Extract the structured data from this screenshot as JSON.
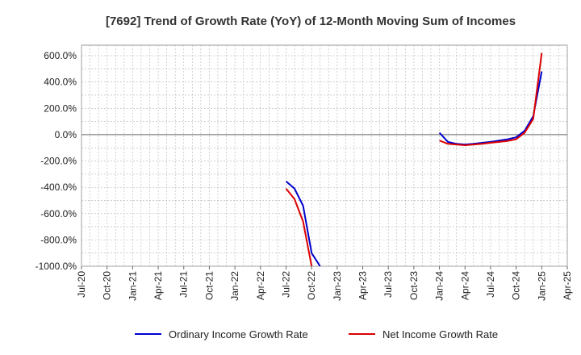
{
  "chart_data": {
    "type": "line",
    "title": "[7692]  Trend of Growth Rate (YoY) of 12-Month Moving Sum of Incomes",
    "xlabel": "",
    "ylabel": "",
    "grid": true,
    "legend_position": "bottom",
    "ylim": [
      -1000,
      680
    ],
    "y_ticks": [
      "600.0%",
      "400.0%",
      "200.0%",
      "0.0%",
      "-200.0%",
      "-400.0%",
      "-600.0%",
      "-800.0%",
      "-1000.0%"
    ],
    "y_tick_values": [
      600,
      400,
      200,
      0,
      -200,
      -400,
      -600,
      -800,
      -1000
    ],
    "x_ticks": [
      "Jul-20",
      "Oct-20",
      "Jan-21",
      "Apr-21",
      "Jul-21",
      "Oct-21",
      "Jan-22",
      "Apr-22",
      "Jul-22",
      "Oct-22",
      "Jan-23",
      "Apr-23",
      "Jul-23",
      "Oct-23",
      "Jan-24",
      "Apr-24",
      "Jul-24",
      "Oct-24",
      "Jan-25",
      "Apr-25"
    ],
    "series": [
      {
        "name": "Ordinary Income Growth Rate",
        "color": "#0000cc",
        "segments": [
          [
            [
              "Jul-22",
              -355
            ],
            [
              "Aug-22",
              -410
            ],
            [
              "Sep-22",
              -540
            ],
            [
              "Oct-22",
              -900
            ],
            [
              "Nov-22",
              -1000
            ]
          ],
          [
            [
              "Jan-24",
              15
            ],
            [
              "Feb-24",
              -55
            ],
            [
              "Mar-24",
              -70
            ],
            [
              "Apr-24",
              -75
            ],
            [
              "May-24",
              -70
            ],
            [
              "Jun-24",
              -62
            ],
            [
              "Jul-24",
              -55
            ],
            [
              "Aug-24",
              -45
            ],
            [
              "Sep-24",
              -35
            ],
            [
              "Oct-24",
              -20
            ],
            [
              "Nov-24",
              30
            ],
            [
              "Dec-24",
              140
            ],
            [
              "Jan-25",
              480
            ]
          ]
        ]
      },
      {
        "name": "Net Income Growth Rate",
        "color": "#dd0000",
        "segments": [
          [
            [
              "Jul-22",
              -410
            ],
            [
              "Aug-22",
              -490
            ],
            [
              "Sep-22",
              -660
            ],
            [
              "Oct-22",
              -1000
            ]
          ],
          [
            [
              "Jan-24",
              -45
            ],
            [
              "Feb-24",
              -70
            ],
            [
              "Mar-24",
              -75
            ],
            [
              "Apr-24",
              -80
            ],
            [
              "May-24",
              -75
            ],
            [
              "Jun-24",
              -70
            ],
            [
              "Jul-24",
              -62
            ],
            [
              "Aug-24",
              -55
            ],
            [
              "Sep-24",
              -48
            ],
            [
              "Oct-24",
              -35
            ],
            [
              "Nov-24",
              15
            ],
            [
              "Dec-24",
              120
            ],
            [
              "Jan-25",
              620
            ]
          ]
        ]
      }
    ]
  }
}
